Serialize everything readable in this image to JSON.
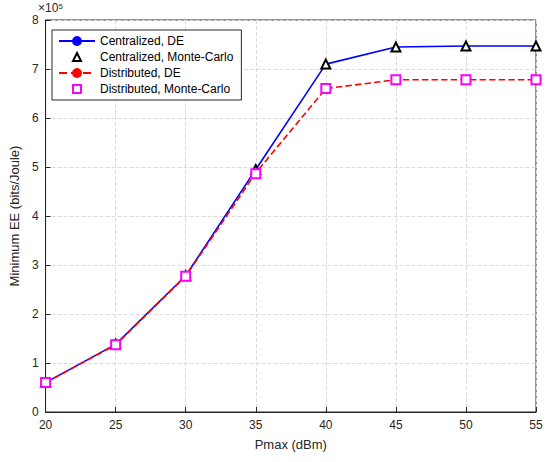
{
  "chart_data": {
    "type": "line",
    "x_label": "Pmax (dBm)",
    "y_label": "Minimum EE (bits/Joule)",
    "annotations": [
      {
        "text": "×10⁵"
      }
    ],
    "x": [
      20,
      25,
      30,
      35,
      40,
      45,
      50,
      55
    ],
    "series": [
      {
        "name": "Centralized, DE",
        "color": "#0000ff",
        "line_style": "solid",
        "marker": "none",
        "values": [
          0.6,
          1.38,
          2.78,
          4.95,
          7.1,
          7.45,
          7.47,
          7.47
        ]
      },
      {
        "name": "Centralized, Monte-Carlo",
        "color": "#000000",
        "line_style": "none",
        "marker": "triangle",
        "values": [
          0.6,
          1.39,
          2.78,
          4.95,
          7.1,
          7.45,
          7.47,
          7.47
        ]
      },
      {
        "name": "Distributed, DE",
        "color": "#ff0000",
        "line_style": "dashed",
        "marker": "none",
        "values": [
          0.6,
          1.37,
          2.77,
          4.88,
          6.6,
          6.78,
          6.78,
          6.78
        ]
      },
      {
        "name": "Distributed, Monte-Carlo",
        "color": "#ff00ff",
        "line_style": "none",
        "marker": "square",
        "values": [
          0.6,
          1.37,
          2.77,
          4.86,
          6.6,
          6.78,
          6.78,
          6.78
        ]
      }
    ],
    "xlim": [
      20,
      55
    ],
    "xticks": [
      20,
      25,
      30,
      35,
      40,
      45,
      50,
      55
    ],
    "ylim": [
      0,
      8
    ],
    "yticks": [
      0,
      1,
      2,
      3,
      4,
      5,
      6,
      7,
      8
    ],
    "grid": true,
    "legend": "upper left"
  }
}
